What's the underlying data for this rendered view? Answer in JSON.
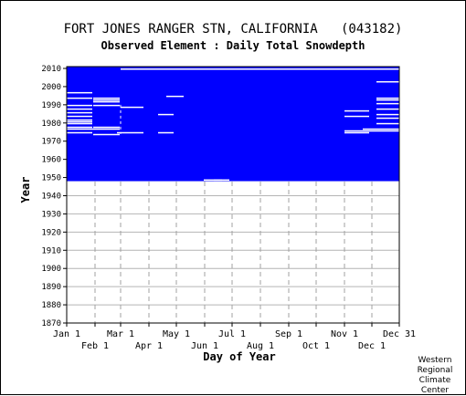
{
  "chart_data": {
    "type": "heatmap",
    "title": "FORT JONES RANGER STN, CALIFORNIA   (043182)",
    "subtitle": "Observed Element : Daily Total Snowdepth",
    "xlabel": "Day of Year",
    "ylabel": "Year",
    "xlim": [
      1,
      365
    ],
    "ylim": [
      1870,
      2011
    ],
    "x_ticks_upper": [
      {
        "label": "Jan 1",
        "day": 1
      },
      {
        "label": "Mar 1",
        "day": 60
      },
      {
        "label": "May 1",
        "day": 121
      },
      {
        "label": "Jul 1",
        "day": 182
      },
      {
        "label": "Sep 1",
        "day": 244
      },
      {
        "label": "Nov 1",
        "day": 305
      },
      {
        "label": "Dec 31",
        "day": 365
      }
    ],
    "x_ticks_lower": [
      {
        "label": "Feb 1",
        "day": 32
      },
      {
        "label": "Apr 1",
        "day": 91
      },
      {
        "label": "Jun 1",
        "day": 152
      },
      {
        "label": "Aug 1",
        "day": 213
      },
      {
        "label": "Oct 1",
        "day": 274
      },
      {
        "label": "Dec 1",
        "day": 335
      }
    ],
    "y_ticks": [
      1870,
      1880,
      1890,
      1900,
      1910,
      1920,
      1930,
      1940,
      1950,
      1960,
      1970,
      1980,
      1990,
      2000,
      2010
    ],
    "data_color": "#0000ff",
    "grid": true,
    "observed_period": {
      "start_year": 1948,
      "end_year": 2010
    },
    "missing_segments": [
      {
        "year": 1948,
        "start_day": 151,
        "end_day": 178
      },
      {
        "year": 1948,
        "start_day": 162,
        "end_day": 170
      },
      {
        "year": 1973,
        "start_day": 30,
        "end_day": 58
      },
      {
        "year": 1974,
        "start_day": 1,
        "end_day": 28
      },
      {
        "year": 1974,
        "start_day": 56,
        "end_day": 84
      },
      {
        "year": 1974,
        "start_day": 101,
        "end_day": 117
      },
      {
        "year": 1974,
        "start_day": 305,
        "end_day": 331
      },
      {
        "year": 1975,
        "start_day": 305,
        "end_day": 365
      },
      {
        "year": 1976,
        "start_day": 1,
        "end_day": 58
      },
      {
        "year": 1976,
        "start_day": 325,
        "end_day": 365
      },
      {
        "year": 1977,
        "start_day": 1,
        "end_day": 28
      },
      {
        "year": 1977,
        "start_day": 30,
        "end_day": 58
      },
      {
        "year": 1979,
        "start_day": 1,
        "end_day": 28
      },
      {
        "year": 1979,
        "start_day": 340,
        "end_day": 365
      },
      {
        "year": 1980,
        "start_day": 1,
        "end_day": 28
      },
      {
        "year": 1981,
        "start_day": 1,
        "end_day": 28
      },
      {
        "year": 1982,
        "start_day": 340,
        "end_day": 365
      },
      {
        "year": 1983,
        "start_day": 1,
        "end_day": 28
      },
      {
        "year": 1983,
        "start_day": 305,
        "end_day": 331
      },
      {
        "year": 1984,
        "start_day": 101,
        "end_day": 117
      },
      {
        "year": 1984,
        "start_day": 340,
        "end_day": 365
      },
      {
        "year": 1985,
        "start_day": 1,
        "end_day": 28
      },
      {
        "year": 1986,
        "start_day": 305,
        "end_day": 331
      },
      {
        "year": 1987,
        "start_day": 1,
        "end_day": 28
      },
      {
        "year": 1987,
        "start_day": 340,
        "end_day": 365
      },
      {
        "year": 1988,
        "start_day": 60,
        "end_day": 84
      },
      {
        "year": 1989,
        "start_day": 1,
        "end_day": 28
      },
      {
        "year": 1989,
        "start_day": 30,
        "end_day": 58
      },
      {
        "year": 1990,
        "start_day": 340,
        "end_day": 365
      },
      {
        "year": 1991,
        "start_day": 30,
        "end_day": 58
      },
      {
        "year": 1992,
        "start_day": 30,
        "end_day": 58
      },
      {
        "year": 1992,
        "start_day": 340,
        "end_day": 365
      },
      {
        "year": 1993,
        "start_day": 1,
        "end_day": 28
      },
      {
        "year": 1993,
        "start_day": 30,
        "end_day": 58
      },
      {
        "year": 1993,
        "start_day": 340,
        "end_day": 365
      },
      {
        "year": 1994,
        "start_day": 110,
        "end_day": 128
      },
      {
        "year": 1996,
        "start_day": 1,
        "end_day": 28
      },
      {
        "year": 2002,
        "start_day": 340,
        "end_day": 365
      },
      {
        "year": 2009,
        "start_day": 60,
        "end_day": 365
      }
    ]
  },
  "credit": {
    "line1": "Western",
    "line2": "Regional",
    "line3": "Climate",
    "line4": "Center"
  }
}
